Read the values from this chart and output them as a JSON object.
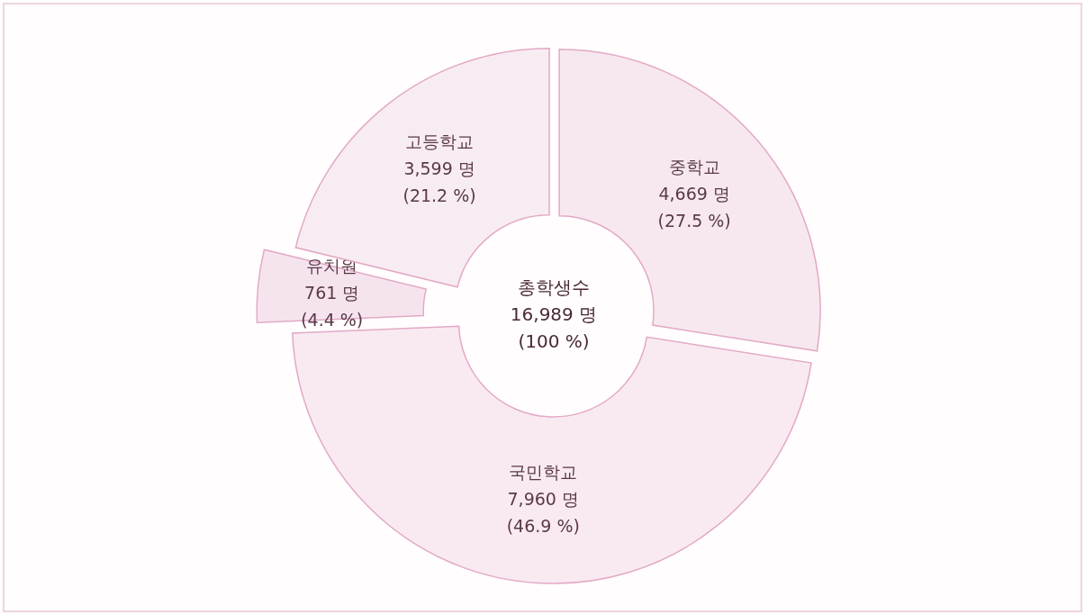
{
  "chart_data": {
    "type": "donut",
    "categories": [
      "중학교",
      "국민학교",
      "유치원",
      "고등학교"
    ],
    "values": [
      4669,
      7960,
      761,
      3599
    ],
    "value_labels": [
      "4,669 명\n(27.5 %)",
      "7,960 명\n(46.9 %)",
      "761 명\n(4.4 %)",
      "3,599 명\n(21.2 %)"
    ],
    "colors": [
      "#f7e8f0",
      "#f9eaf2",
      "#f5e4ee",
      "#f8ecf3"
    ],
    "annotations": [
      "총학생수\n16,989 명\n(100 %)"
    ]
  }
}
